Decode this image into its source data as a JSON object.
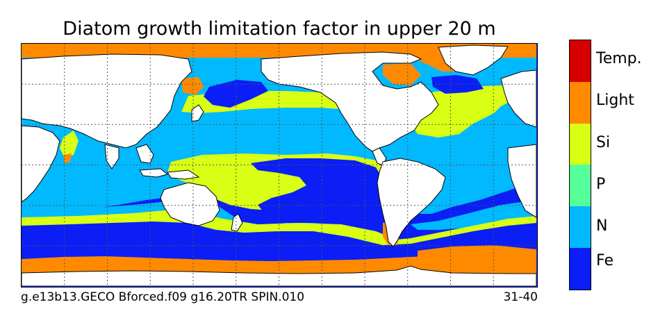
{
  "title": "Diatom growth limitation factor in upper 20 m",
  "footer": {
    "run_id": "g.e13b13.GECO Bforced.f09 g16.20TR SPIN.010",
    "period": "31-40"
  },
  "colors": {
    "Fe": "#0a1ef5",
    "N": "#00b9ff",
    "P": "#55ff9a",
    "Si": "#d8ff14",
    "Light": "#ff8a00",
    "Temp": "#d60000",
    "land": "#ffffff",
    "coast": "#000000"
  },
  "legend": {
    "items": [
      {
        "label": "Temp.",
        "color": "#d60000"
      },
      {
        "label": "Light",
        "color": "#ff8a00"
      },
      {
        "label": "Si",
        "color": "#d8ff14"
      },
      {
        "label": "P",
        "color": "#55ff9a"
      },
      {
        "label": "N",
        "color": "#00b9ff"
      },
      {
        "label": "Fe",
        "color": "#0a1ef5"
      }
    ]
  }
}
